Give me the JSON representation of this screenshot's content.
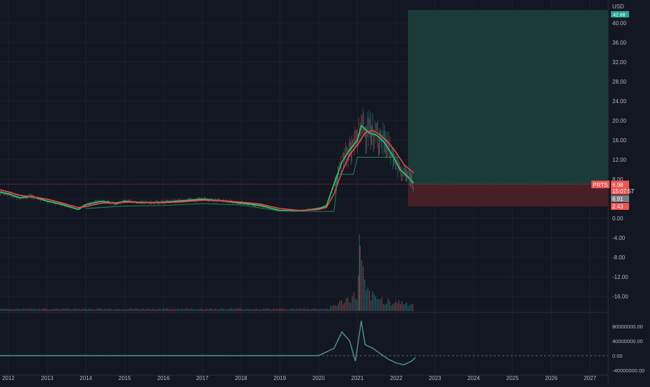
{
  "currency": "USD",
  "symbol": "PRTS",
  "last_price": "6.98",
  "countdown": "15:07:57",
  "ma_value": "6.91",
  "stop_value": "2.43",
  "target_value": "42.68",
  "colors": {
    "background": "#131722",
    "grid": "#1e222d",
    "up": "#26a69a",
    "down": "#ef5350",
    "ma_fast": "#2ecc71",
    "ma_slow": "#e84b4b",
    "profit_zone": "#1a3d3a",
    "loss_zone": "#4a2027"
  },
  "chart_data": [
    {
      "type": "line",
      "panel": "price",
      "x_axis": [
        "2012",
        "2013",
        "2014",
        "2015",
        "2016",
        "2017",
        "2018",
        "2019",
        "2020",
        "2021",
        "2022",
        "2023",
        "2024",
        "2025",
        "2026",
        "2027"
      ],
      "y_ticks": [
        "40.00",
        "36.00",
        "32.00",
        "28.00",
        "24.00",
        "20.00",
        "16.00",
        "12.00",
        "8.00",
        "4.00",
        "0.00",
        "-4.00",
        "-8.00",
        "-12.00",
        "-16.00"
      ],
      "ylim": [
        -18,
        43
      ],
      "series": [
        {
          "color": "#2ecc71",
          "x": [
            2011.7,
            2012.0,
            2012.3,
            2012.6,
            2013.0,
            2013.4,
            2013.8,
            2014.0,
            2014.4,
            2014.8,
            2015.0,
            2015.4,
            2015.8,
            2016.0,
            2016.5,
            2017.0,
            2017.5,
            2018.0,
            2018.5,
            2019.0,
            2019.5,
            2020.0,
            2020.2,
            2020.4,
            2020.6,
            2020.8,
            2021.0,
            2021.1,
            2021.3,
            2021.5,
            2021.7,
            2021.9,
            2022.1,
            2022.3,
            2022.45
          ],
          "y": [
            5.5,
            5.0,
            4.2,
            4.5,
            3.5,
            2.8,
            1.8,
            2.8,
            3.5,
            3.0,
            3.5,
            3.2,
            3.2,
            3.3,
            3.6,
            3.9,
            3.6,
            3.1,
            2.6,
            1.6,
            1.5,
            2.0,
            2.5,
            7.0,
            11.5,
            14.0,
            16.0,
            19.0,
            17.5,
            17.0,
            15.5,
            13.0,
            10.0,
            8.5,
            7.2
          ]
        },
        {
          "color": "#e84b4b",
          "x": [
            2011.7,
            2012.0,
            2012.3,
            2012.6,
            2013.0,
            2013.4,
            2013.8,
            2014.0,
            2014.4,
            2014.8,
            2015.0,
            2015.4,
            2015.8,
            2016.0,
            2016.5,
            2017.0,
            2017.5,
            2018.0,
            2018.5,
            2019.0,
            2019.5,
            2020.0,
            2020.2,
            2020.4,
            2020.6,
            2020.8,
            2021.0,
            2021.2,
            2021.4,
            2021.6,
            2021.8,
            2022.0,
            2022.2,
            2022.45
          ],
          "y": [
            6.0,
            5.4,
            4.7,
            4.4,
            3.9,
            3.1,
            2.2,
            2.4,
            3.1,
            3.2,
            3.3,
            3.3,
            3.2,
            3.2,
            3.4,
            3.7,
            3.6,
            3.3,
            2.9,
            2.0,
            1.6,
            1.8,
            2.2,
            5.0,
            9.5,
            13.0,
            15.0,
            17.5,
            18.0,
            17.0,
            15.5,
            13.5,
            11.0,
            9.3
          ]
        },
        {
          "color": "#1f8f57",
          "x": [
            2014.0,
            2015.0,
            2016.0,
            2017.0,
            2018.0,
            2019.0,
            2020.0,
            2020.4,
            2020.5,
            2020.9,
            2021.0,
            2021.5,
            2021.6,
            2022.1
          ],
          "y": [
            2.0,
            2.5,
            2.6,
            3.0,
            2.7,
            1.5,
            1.4,
            1.4,
            9.0,
            9.0,
            12.5,
            12.5,
            12.5,
            12.5
          ]
        }
      ]
    },
    {
      "type": "bar",
      "panel": "volume",
      "x": [
        2020.2,
        2020.4,
        2020.6,
        2020.8,
        2021.0,
        2021.05,
        2021.2,
        2021.4,
        2021.6,
        2021.8,
        2022.0,
        2022.2,
        2022.4
      ],
      "values": [
        12,
        25,
        40,
        55,
        70,
        240,
        90,
        60,
        50,
        45,
        40,
        35,
        30
      ]
    },
    {
      "type": "line",
      "panel": "oscillator",
      "y_ticks": [
        "80000000.00",
        "40000000.00",
        "0.00",
        "-40000000.00"
      ],
      "ylim": [
        -45000000,
        100000000
      ],
      "series": [
        {
          "color": "#26a69a",
          "x": [
            2011.7,
            2013.0,
            2015.0,
            2017.0,
            2019.0,
            2020.0,
            2020.4,
            2020.6,
            2020.8,
            2020.95,
            2021.1,
            2021.2,
            2021.4,
            2021.6,
            2021.8,
            2022.0,
            2022.2,
            2022.4,
            2022.5
          ],
          "y": [
            0,
            0,
            0,
            0,
            0,
            0,
            20000000,
            65000000,
            40000000,
            -15000000,
            95000000,
            30000000,
            20000000,
            5000000,
            -10000000,
            -20000000,
            -25000000,
            -15000000,
            -5000000
          ]
        }
      ]
    }
  ]
}
